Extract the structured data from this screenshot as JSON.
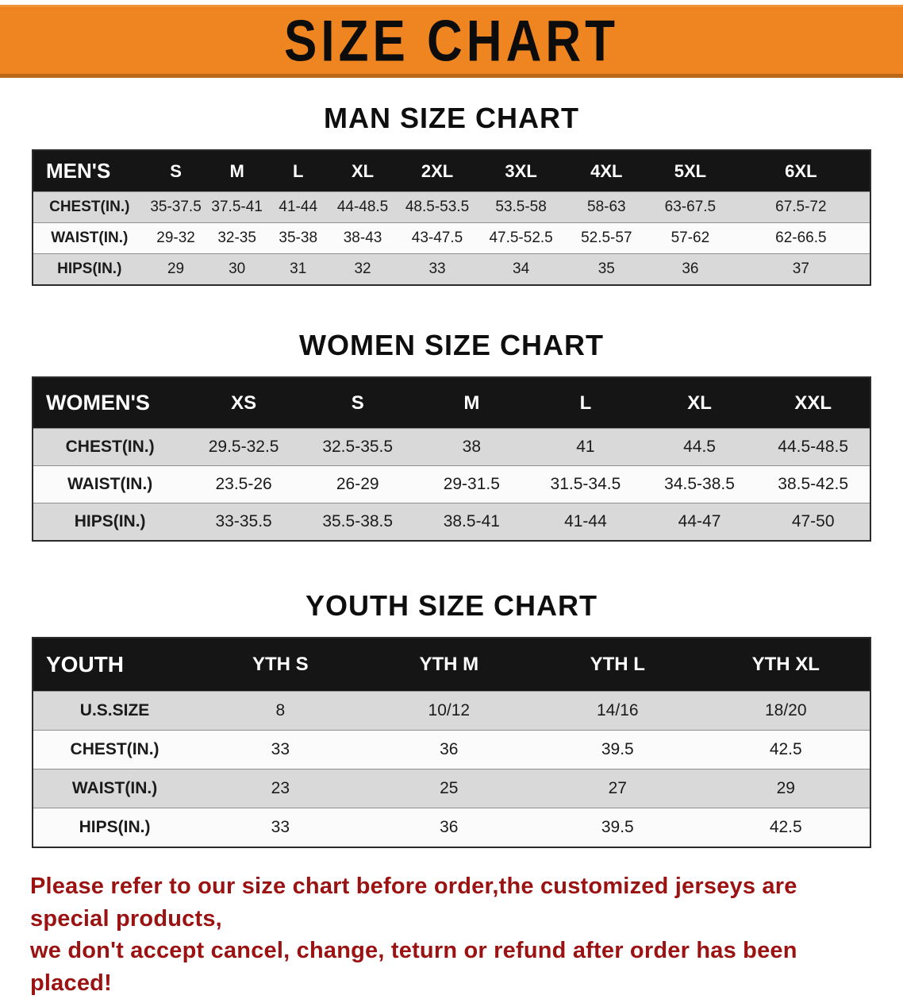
{
  "banner": {
    "title": "SIZE CHART",
    "bg_color": "#ee8520"
  },
  "sections": [
    {
      "heading": "MAN SIZE CHART",
      "table": {
        "header": [
          "MEN'S",
          "S",
          "M",
          "L",
          "XL",
          "2XL",
          "3XL",
          "4XL",
          "5XL",
          "6XL"
        ],
        "rows": [
          [
            "CHEST(IN.)",
            "35-37.5",
            "37.5-41",
            "41-44",
            "44-48.5",
            "48.5-53.5",
            "53.5-58",
            "58-63",
            "63-67.5",
            "67.5-72"
          ],
          [
            "WAIST(IN.)",
            "29-32",
            "32-35",
            "35-38",
            "38-43",
            "43-47.5",
            "47.5-52.5",
            "52.5-57",
            "57-62",
            "62-66.5"
          ],
          [
            "HIPS(IN.)",
            "29",
            "30",
            "31",
            "32",
            "33",
            "34",
            "35",
            "36",
            "37"
          ]
        ]
      }
    },
    {
      "heading": "WOMEN SIZE CHART",
      "table": {
        "header": [
          "WOMEN'S",
          "XS",
          "S",
          "M",
          "L",
          "XL",
          "XXL"
        ],
        "rows": [
          [
            "CHEST(IN.)",
            "29.5-32.5",
            "32.5-35.5",
            "38",
            "41",
            "44.5",
            "44.5-48.5"
          ],
          [
            "WAIST(IN.)",
            "23.5-26",
            "26-29",
            "29-31.5",
            "31.5-34.5",
            "34.5-38.5",
            "38.5-42.5"
          ],
          [
            "HIPS(IN.)",
            "33-35.5",
            "35.5-38.5",
            "38.5-41",
            "41-44",
            "44-47",
            "47-50"
          ]
        ]
      }
    },
    {
      "heading": "YOUTH SIZE CHART",
      "table": {
        "header": [
          "YOUTH",
          "YTH S",
          "YTH M",
          "YTH L",
          "YTH XL"
        ],
        "rows": [
          [
            "U.S.SIZE",
            "8",
            "10/12",
            "14/16",
            "18/20"
          ],
          [
            "CHEST(IN.)",
            "33",
            "36",
            "39.5",
            "42.5"
          ],
          [
            "WAIST(IN.)",
            "23",
            "25",
            "27",
            "29"
          ],
          [
            "HIPS(IN.)",
            "33",
            "36",
            "39.5",
            "42.5"
          ]
        ]
      }
    }
  ],
  "footer": {
    "color": "#9b1212",
    "lines": [
      "Please refer to our size chart before order,the customized jerseys are special products,",
      "we don't accept cancel, change, teturn or refund after order has been placed!"
    ]
  }
}
